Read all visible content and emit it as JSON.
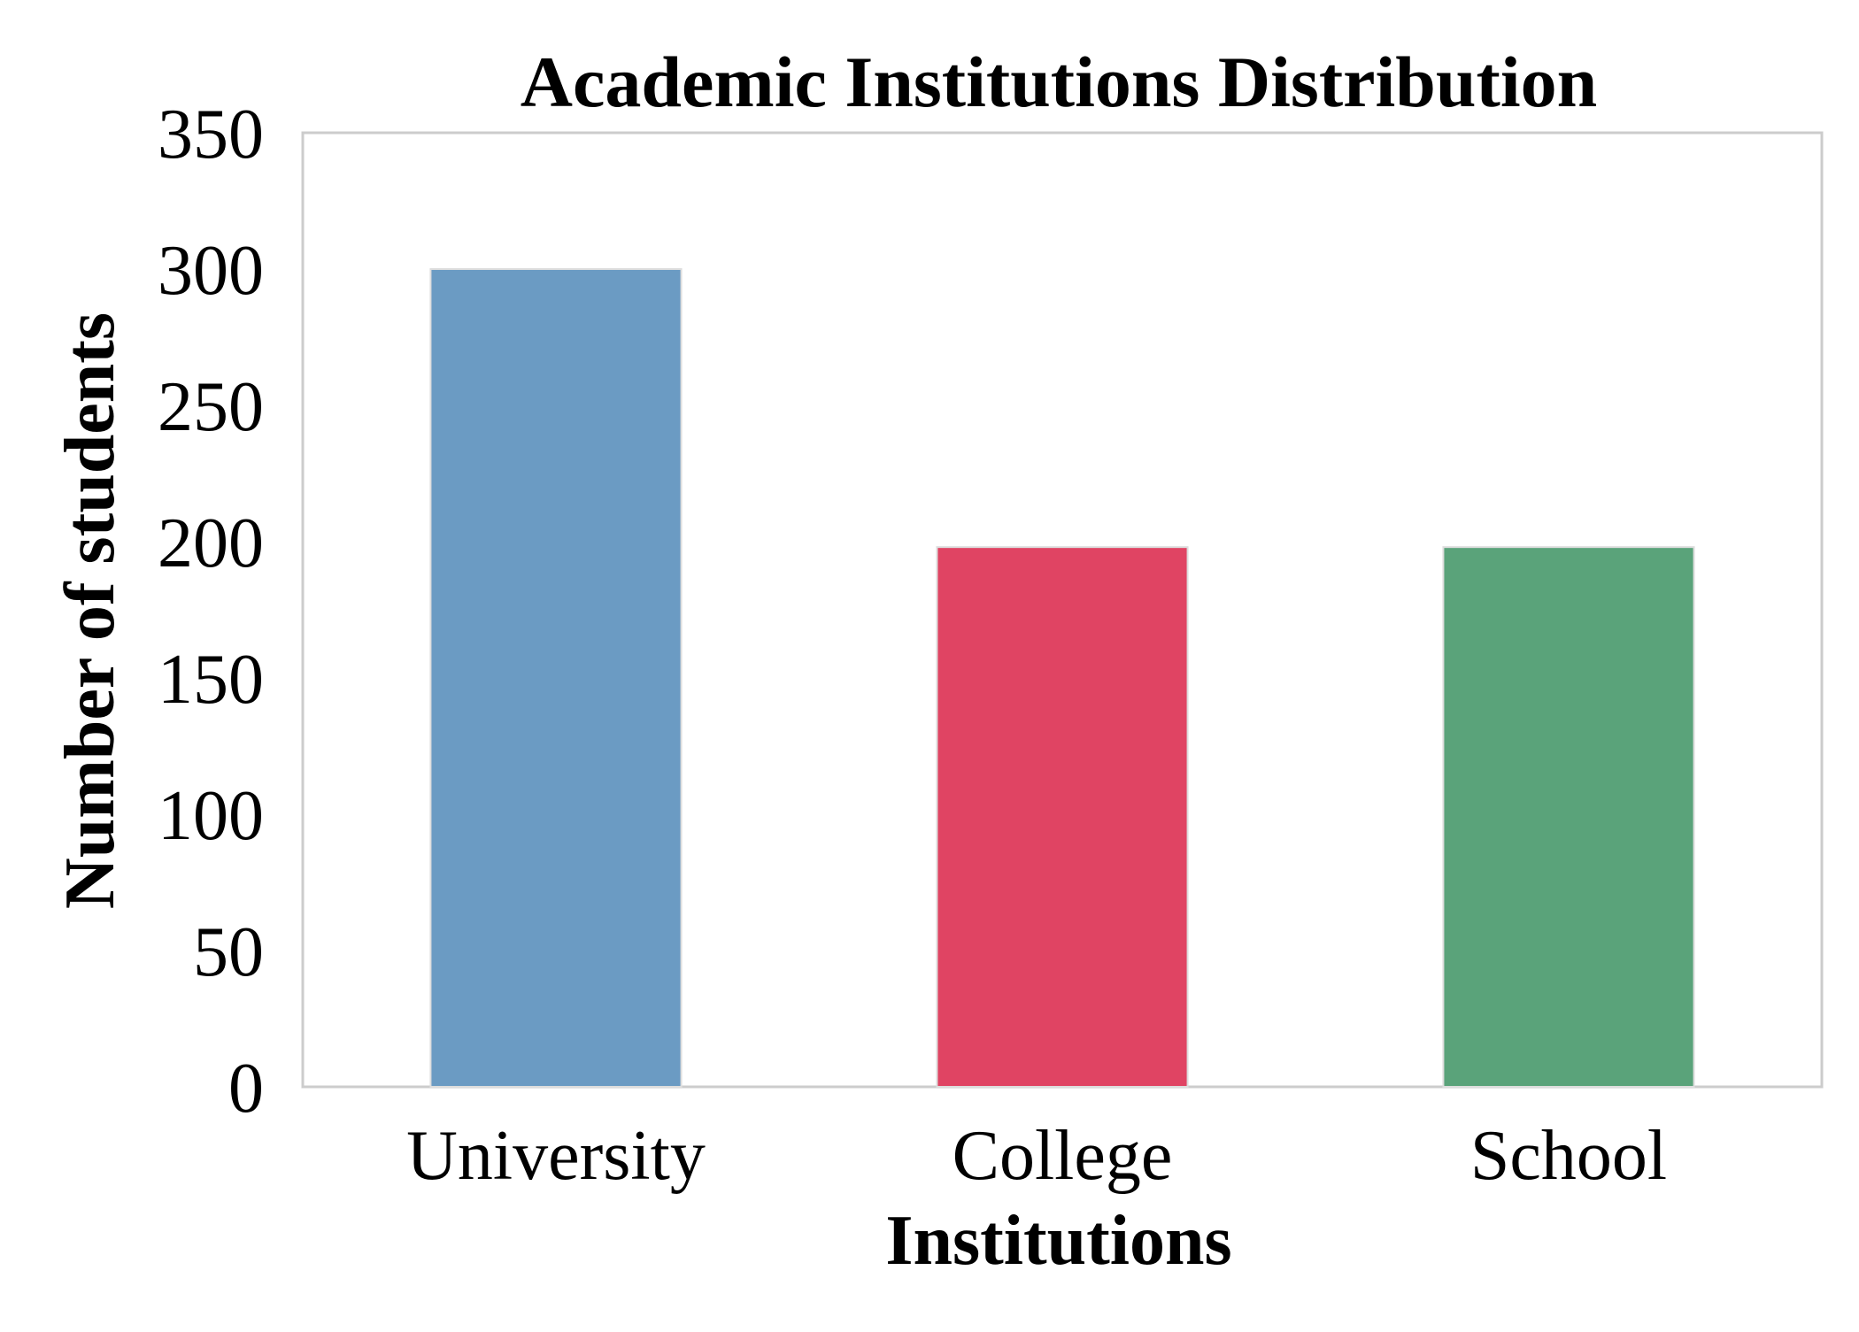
{
  "chart_data": {
    "type": "bar",
    "title": "Academic Institutions Distribution",
    "xlabel": "Institutions",
    "ylabel": "Number of students",
    "categories": [
      "University",
      "College",
      "School"
    ],
    "values": [
      300,
      198,
      198
    ],
    "colors": [
      "#6b9bc3",
      "#e04463",
      "#5aa37a"
    ],
    "ylim": [
      0,
      350
    ],
    "yticks": [
      "0",
      "50",
      "100",
      "150",
      "200",
      "250",
      "300",
      "350"
    ],
    "grid": false,
    "legend": "none",
    "frame_color": "#cccccc",
    "bar_edge_color": "#dddddd"
  }
}
